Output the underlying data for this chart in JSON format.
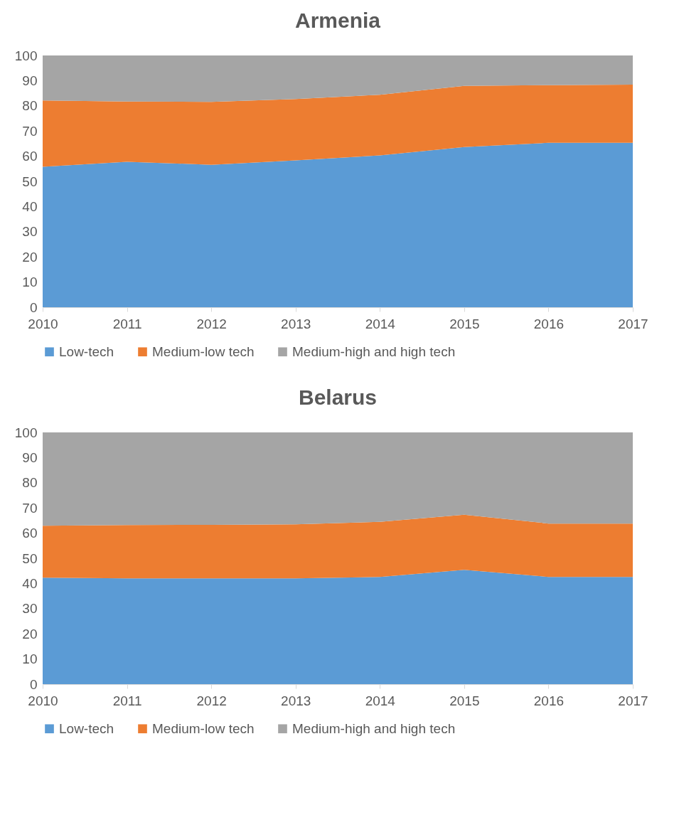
{
  "chart_data": [
    {
      "type": "area",
      "title": "Armenia",
      "stacked": true,
      "x": [
        2010,
        2011,
        2012,
        2013,
        2014,
        2015,
        2016,
        2017
      ],
      "xlim": [
        2010,
        2017
      ],
      "xticks": [
        2010,
        2011,
        2012,
        2013,
        2014,
        2015,
        2016,
        2017
      ],
      "ylim": [
        0,
        100
      ],
      "yticks": [
        0,
        10,
        20,
        30,
        40,
        50,
        60,
        70,
        80,
        90,
        100
      ],
      "legend": "bottom",
      "grid": false,
      "series": [
        {
          "name": "Low-tech",
          "color": "#5b9bd5",
          "values": [
            55.8,
            57.8,
            56.6,
            58.3,
            60.3,
            63.6,
            65.3,
            65.3
          ]
        },
        {
          "name": "Medium-low tech",
          "color": "#ed7d31",
          "values": [
            26.3,
            23.9,
            25.0,
            24.4,
            24.1,
            24.3,
            22.9,
            23.1
          ]
        },
        {
          "name": "Medium-high and high tech",
          "color": "#a5a5a5",
          "values": [
            17.9,
            18.3,
            18.4,
            17.3,
            15.6,
            12.1,
            11.8,
            11.6
          ]
        }
      ]
    },
    {
      "type": "area",
      "title": "Belarus",
      "stacked": true,
      "x": [
        2010,
        2011,
        2012,
        2013,
        2014,
        2015,
        2016,
        2017
      ],
      "xlim": [
        2010,
        2017
      ],
      "xticks": [
        2010,
        2011,
        2012,
        2013,
        2014,
        2015,
        2016,
        2017
      ],
      "ylim": [
        0,
        100
      ],
      "yticks": [
        0,
        10,
        20,
        30,
        40,
        50,
        60,
        70,
        80,
        90,
        100
      ],
      "legend": "bottom",
      "grid": false,
      "series": [
        {
          "name": "Low-tech",
          "color": "#5b9bd5",
          "values": [
            42.3,
            42.0,
            42.0,
            42.0,
            42.6,
            45.4,
            42.6,
            42.6
          ]
        },
        {
          "name": "Medium-low tech",
          "color": "#ed7d31",
          "values": [
            20.6,
            21.2,
            21.3,
            21.5,
            21.9,
            21.9,
            21.2,
            21.2
          ]
        },
        {
          "name": "Medium-high and high tech",
          "color": "#a5a5a5",
          "values": [
            37.1,
            36.8,
            36.7,
            36.5,
            35.5,
            32.7,
            36.2,
            36.2
          ]
        }
      ]
    }
  ]
}
